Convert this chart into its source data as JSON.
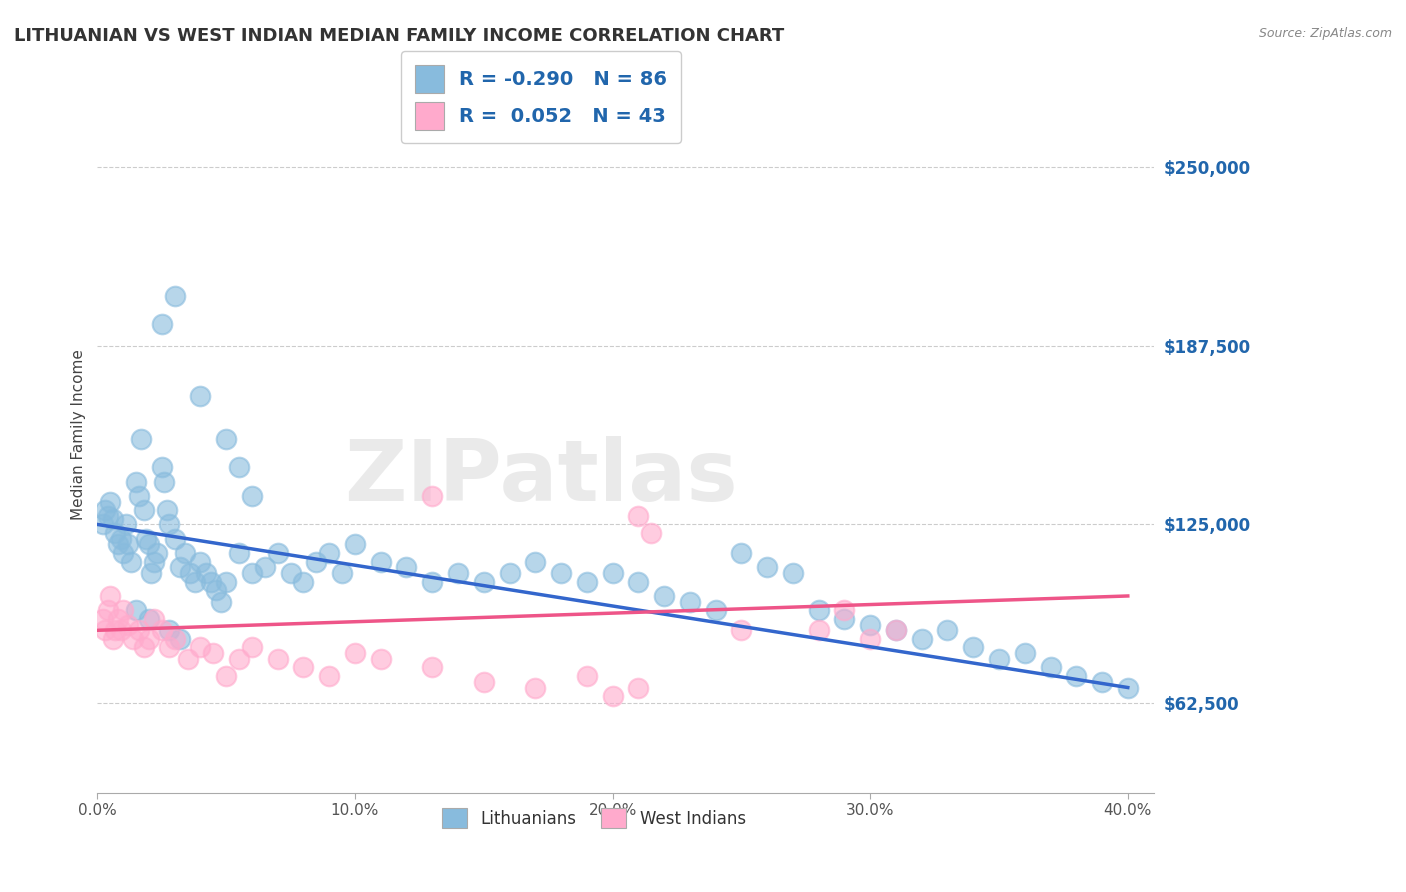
{
  "title": "LITHUANIAN VS WEST INDIAN MEDIAN FAMILY INCOME CORRELATION CHART",
  "source_text": "Source: ZipAtlas.com",
  "ylabel": "Median Family Income",
  "xlim": [
    0.0,
    0.41
  ],
  "ylim": [
    31250,
    281250
  ],
  "yticks": [
    62500,
    125000,
    187500,
    250000
  ],
  "ytick_labels": [
    "$62,500",
    "$125,000",
    "$187,500",
    "$250,000"
  ],
  "xticks": [
    0.0,
    0.1,
    0.2,
    0.3,
    0.4
  ],
  "xtick_labels": [
    "0.0%",
    "10.0%",
    "20.0%",
    "30.0%",
    "40.0%"
  ],
  "legend_R1": "-0.290",
  "legend_N1": "86",
  "legend_R2": "0.052",
  "legend_N2": "43",
  "color_blue": "#88bbdd",
  "color_pink": "#ffaacc",
  "line_blue": "#3366cc",
  "line_pink": "#ee5588",
  "watermark": "ZIPatlas",
  "background_color": "#ffffff",
  "title_fontsize": 13,
  "axis_label_fontsize": 11,
  "tick_fontsize": 11,
  "scatter_blue_x": [
    0.002,
    0.003,
    0.004,
    0.005,
    0.006,
    0.007,
    0.008,
    0.009,
    0.01,
    0.011,
    0.012,
    0.013,
    0.015,
    0.016,
    0.017,
    0.018,
    0.019,
    0.02,
    0.021,
    0.022,
    0.023,
    0.025,
    0.026,
    0.027,
    0.028,
    0.03,
    0.032,
    0.034,
    0.036,
    0.038,
    0.04,
    0.042,
    0.044,
    0.046,
    0.048,
    0.05,
    0.055,
    0.06,
    0.065,
    0.07,
    0.075,
    0.08,
    0.085,
    0.09,
    0.095,
    0.1,
    0.11,
    0.12,
    0.13,
    0.14,
    0.15,
    0.16,
    0.17,
    0.18,
    0.19,
    0.2,
    0.21,
    0.22,
    0.23,
    0.24,
    0.25,
    0.26,
    0.27,
    0.28,
    0.29,
    0.3,
    0.31,
    0.32,
    0.33,
    0.34,
    0.35,
    0.36,
    0.37,
    0.38,
    0.39,
    0.4,
    0.025,
    0.03,
    0.04,
    0.05,
    0.055,
    0.06,
    0.028,
    0.032,
    0.02,
    0.015
  ],
  "scatter_blue_y": [
    125000,
    130000,
    128000,
    133000,
    127000,
    122000,
    118000,
    120000,
    115000,
    125000,
    118000,
    112000,
    140000,
    135000,
    155000,
    130000,
    120000,
    118000,
    108000,
    112000,
    115000,
    145000,
    140000,
    130000,
    125000,
    120000,
    110000,
    115000,
    108000,
    105000,
    112000,
    108000,
    105000,
    102000,
    98000,
    105000,
    115000,
    108000,
    110000,
    115000,
    108000,
    105000,
    112000,
    115000,
    108000,
    118000,
    112000,
    110000,
    105000,
    108000,
    105000,
    108000,
    112000,
    108000,
    105000,
    108000,
    105000,
    100000,
    98000,
    95000,
    115000,
    110000,
    108000,
    95000,
    92000,
    90000,
    88000,
    85000,
    88000,
    82000,
    78000,
    80000,
    75000,
    72000,
    70000,
    68000,
    195000,
    205000,
    170000,
    155000,
    145000,
    135000,
    88000,
    85000,
    92000,
    95000
  ],
  "scatter_pink_x": [
    0.002,
    0.003,
    0.004,
    0.005,
    0.006,
    0.007,
    0.008,
    0.009,
    0.01,
    0.012,
    0.014,
    0.016,
    0.018,
    0.02,
    0.022,
    0.025,
    0.028,
    0.03,
    0.035,
    0.04,
    0.045,
    0.05,
    0.055,
    0.06,
    0.07,
    0.08,
    0.09,
    0.1,
    0.11,
    0.13,
    0.15,
    0.17,
    0.19,
    0.2,
    0.21,
    0.25,
    0.28,
    0.29,
    0.3,
    0.31,
    0.13,
    0.21,
    0.215
  ],
  "scatter_pink_y": [
    92000,
    88000,
    95000,
    100000,
    85000,
    88000,
    92000,
    88000,
    95000,
    90000,
    85000,
    88000,
    82000,
    85000,
    92000,
    88000,
    82000,
    85000,
    78000,
    82000,
    80000,
    72000,
    78000,
    82000,
    78000,
    75000,
    72000,
    80000,
    78000,
    75000,
    70000,
    68000,
    72000,
    65000,
    68000,
    88000,
    88000,
    95000,
    85000,
    88000,
    135000,
    128000,
    122000
  ]
}
